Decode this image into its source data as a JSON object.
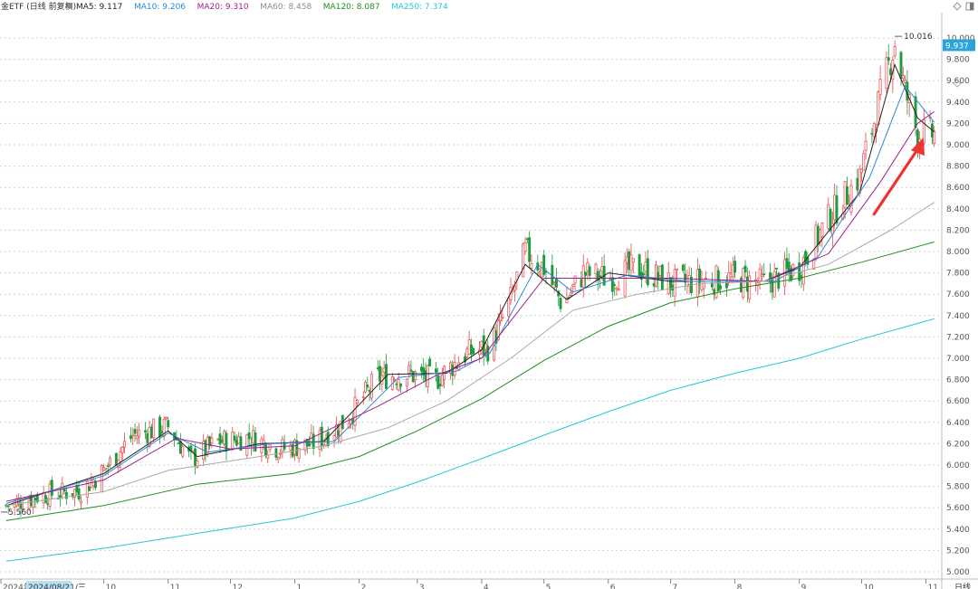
{
  "header": {
    "title": "金ETF (日线 前复权)",
    "legend": [
      {
        "label": "MA5: 9.117",
        "color": "#222222"
      },
      {
        "label": "MA10: 9.206",
        "color": "#2b88d8"
      },
      {
        "label": "MA20: 9.310",
        "color": "#a0208a"
      },
      {
        "label": "MA60: 8.458",
        "color": "#8c8c8c"
      },
      {
        "label": "MA120: 8.087",
        "color": "#1f8f1f"
      },
      {
        "label": "MA250: 7.374",
        "color": "#26c6da"
      }
    ]
  },
  "period_label": "日线",
  "icons": [
    "diamond-icon",
    "collapse-icon"
  ],
  "colors": {
    "up": "#e8474a",
    "down": "#1c9c3a",
    "grid": "#d0d0d0",
    "price_tag_bg": "#29a3d9",
    "date_tag_bg": "#b8dff2",
    "ma5": "#222222",
    "ma10": "#2b88d8",
    "ma20": "#a0208a",
    "ma60": "#a9a9a9",
    "ma120": "#1f8f1f",
    "ma250": "#26c6da",
    "arrow": "#ee3333"
  },
  "chart_data": {
    "type": "candlestick",
    "y_ticks": [
      "10.000",
      "9.800",
      "9.600",
      "9.400",
      "9.200",
      "9.000",
      "8.800",
      "8.600",
      "8.400",
      "8.200",
      "8.000",
      "7.800",
      "7.600",
      "7.400",
      "7.200",
      "7.000",
      "6.800",
      "6.600",
      "6.400",
      "6.200",
      "6.000",
      "5.800",
      "5.600",
      "5.400",
      "5.200",
      "5.000"
    ],
    "ylim": [
      5.0,
      10.1
    ],
    "x_labels": [
      {
        "label": "2024年",
        "date": "2024-08-15"
      },
      {
        "label": "2024/08/21/三",
        "date": "2024-08-21",
        "highlight": true
      },
      {
        "label": "10",
        "date": "2024-10-01"
      },
      {
        "label": "11",
        "date": "2024-11-01"
      },
      {
        "label": "12",
        "date": "2024-12-01"
      },
      {
        "label": "1",
        "date": "2025-01-01"
      },
      {
        "label": "2",
        "date": "2025-02-01"
      },
      {
        "label": "3",
        "date": "2025-03-01"
      },
      {
        "label": "4",
        "date": "2025-04-01"
      },
      {
        "label": "5",
        "date": "2025-05-01"
      },
      {
        "label": "6",
        "date": "2025-06-01"
      },
      {
        "label": "7",
        "date": "2025-07-01"
      },
      {
        "label": "8",
        "date": "2025-08-01"
      },
      {
        "label": "9",
        "date": "2025-09-01"
      },
      {
        "label": "10",
        "date": "2025-10-01"
      },
      {
        "label": "11",
        "date": "2025-11-01"
      }
    ],
    "last_price": "9.937",
    "high_marker": "10.016",
    "low_marker": "5.560",
    "series_close_path": [
      [
        "2024-08-15",
        5.62
      ],
      [
        "2024-09-01",
        5.72
      ],
      [
        "2024-09-20",
        5.76
      ],
      [
        "2024-10-01",
        5.95
      ],
      [
        "2024-10-15",
        6.28
      ],
      [
        "2024-11-01",
        6.36
      ],
      [
        "2024-11-12",
        6.05
      ],
      [
        "2024-11-25",
        6.22
      ],
      [
        "2024-12-10",
        6.26
      ],
      [
        "2024-12-25",
        6.15
      ],
      [
        "2025-01-10",
        6.2
      ],
      [
        "2025-01-25",
        6.4
      ],
      [
        "2025-02-10",
        6.82
      ],
      [
        "2025-02-25",
        6.85
      ],
      [
        "2025-03-10",
        6.8
      ],
      [
        "2025-03-25",
        7.05
      ],
      [
        "2025-04-05",
        7.1
      ],
      [
        "2025-04-15",
        7.55
      ],
      [
        "2025-04-22",
        8.0
      ],
      [
        "2025-05-01",
        7.85
      ],
      [
        "2025-05-10",
        7.5
      ],
      [
        "2025-05-20",
        7.8
      ],
      [
        "2025-06-01",
        7.75
      ],
      [
        "2025-06-15",
        7.85
      ],
      [
        "2025-07-01",
        7.7
      ],
      [
        "2025-07-15",
        7.72
      ],
      [
        "2025-08-01",
        7.75
      ],
      [
        "2025-08-15",
        7.7
      ],
      [
        "2025-09-01",
        7.85
      ],
      [
        "2025-09-15",
        8.3
      ],
      [
        "2025-09-30",
        8.7
      ],
      [
        "2025-10-10",
        9.45
      ],
      [
        "2025-10-17",
        9.95
      ],
      [
        "2025-10-22",
        9.5
      ],
      [
        "2025-10-28",
        9.1
      ],
      [
        "2025-11-05",
        9.1
      ]
    ],
    "ma_series": [
      {
        "name": "MA5",
        "points": [
          [
            "2024-08-15",
            5.62
          ],
          [
            "2024-10-01",
            5.92
          ],
          [
            "2024-11-01",
            6.32
          ],
          [
            "2024-11-15",
            6.08
          ],
          [
            "2024-12-15",
            6.2
          ],
          [
            "2025-01-15",
            6.22
          ],
          [
            "2025-02-15",
            6.85
          ],
          [
            "2025-03-15",
            6.86
          ],
          [
            "2025-04-01",
            7.08
          ],
          [
            "2025-04-22",
            7.88
          ],
          [
            "2025-05-12",
            7.55
          ],
          [
            "2025-06-01",
            7.8
          ],
          [
            "2025-07-01",
            7.72
          ],
          [
            "2025-08-15",
            7.72
          ],
          [
            "2025-09-01",
            7.85
          ],
          [
            "2025-09-30",
            8.55
          ],
          [
            "2025-10-17",
            9.75
          ],
          [
            "2025-10-28",
            9.25
          ],
          [
            "2025-11-05",
            9.12
          ]
        ]
      },
      {
        "name": "MA10",
        "points": [
          [
            "2024-08-15",
            5.64
          ],
          [
            "2024-10-01",
            5.9
          ],
          [
            "2024-11-01",
            6.3
          ],
          [
            "2024-11-20",
            6.12
          ],
          [
            "2024-12-20",
            6.2
          ],
          [
            "2025-01-20",
            6.22
          ],
          [
            "2025-02-20",
            6.82
          ],
          [
            "2025-03-20",
            6.88
          ],
          [
            "2025-04-05",
            7.05
          ],
          [
            "2025-04-28",
            7.88
          ],
          [
            "2025-05-15",
            7.62
          ],
          [
            "2025-06-10",
            7.78
          ],
          [
            "2025-07-10",
            7.72
          ],
          [
            "2025-08-20",
            7.72
          ],
          [
            "2025-09-10",
            7.95
          ],
          [
            "2025-10-05",
            8.7
          ],
          [
            "2025-10-22",
            9.55
          ],
          [
            "2025-11-05",
            9.21
          ]
        ]
      },
      {
        "name": "MA20",
        "points": [
          [
            "2024-08-15",
            5.66
          ],
          [
            "2024-10-01",
            5.86
          ],
          [
            "2024-11-05",
            6.25
          ],
          [
            "2024-12-01",
            6.15
          ],
          [
            "2025-01-01",
            6.18
          ],
          [
            "2025-02-10",
            6.55
          ],
          [
            "2025-03-10",
            6.84
          ],
          [
            "2025-04-01",
            7.0
          ],
          [
            "2025-05-01",
            7.75
          ],
          [
            "2025-06-01",
            7.75
          ],
          [
            "2025-07-01",
            7.75
          ],
          [
            "2025-08-15",
            7.72
          ],
          [
            "2025-09-15",
            7.98
          ],
          [
            "2025-10-10",
            8.65
          ],
          [
            "2025-10-28",
            9.2
          ],
          [
            "2025-11-05",
            9.31
          ]
        ]
      },
      {
        "name": "MA60",
        "points": [
          [
            "2024-08-15",
            5.62
          ],
          [
            "2024-10-01",
            5.75
          ],
          [
            "2024-11-01",
            5.95
          ],
          [
            "2024-12-15",
            6.08
          ],
          [
            "2025-01-15",
            6.18
          ],
          [
            "2025-02-15",
            6.35
          ],
          [
            "2025-03-15",
            6.6
          ],
          [
            "2025-04-15",
            7.0
          ],
          [
            "2025-05-15",
            7.45
          ],
          [
            "2025-06-15",
            7.6
          ],
          [
            "2025-07-15",
            7.7
          ],
          [
            "2025-08-15",
            7.72
          ],
          [
            "2025-09-15",
            7.88
          ],
          [
            "2025-10-15",
            8.2
          ],
          [
            "2025-11-05",
            8.46
          ]
        ]
      },
      {
        "name": "MA120",
        "points": [
          [
            "2024-08-15",
            5.48
          ],
          [
            "2024-10-01",
            5.62
          ],
          [
            "2024-11-15",
            5.82
          ],
          [
            "2024-12-31",
            5.92
          ],
          [
            "2025-02-01",
            6.08
          ],
          [
            "2025-03-01",
            6.32
          ],
          [
            "2025-04-01",
            6.62
          ],
          [
            "2025-05-01",
            6.98
          ],
          [
            "2025-06-01",
            7.3
          ],
          [
            "2025-07-01",
            7.52
          ],
          [
            "2025-08-01",
            7.65
          ],
          [
            "2025-09-01",
            7.75
          ],
          [
            "2025-10-01",
            7.9
          ],
          [
            "2025-11-05",
            8.09
          ]
        ]
      },
      {
        "name": "MA250",
        "points": [
          [
            "2024-08-15",
            5.1
          ],
          [
            "2024-10-01",
            5.22
          ],
          [
            "2024-11-15",
            5.36
          ],
          [
            "2024-12-31",
            5.5
          ],
          [
            "2025-02-01",
            5.66
          ],
          [
            "2025-03-01",
            5.84
          ],
          [
            "2025-04-01",
            6.06
          ],
          [
            "2025-05-01",
            6.28
          ],
          [
            "2025-06-01",
            6.5
          ],
          [
            "2025-07-01",
            6.7
          ],
          [
            "2025-08-01",
            6.86
          ],
          [
            "2025-09-01",
            7.0
          ],
          [
            "2025-10-01",
            7.18
          ],
          [
            "2025-11-05",
            7.37
          ]
        ]
      }
    ]
  }
}
